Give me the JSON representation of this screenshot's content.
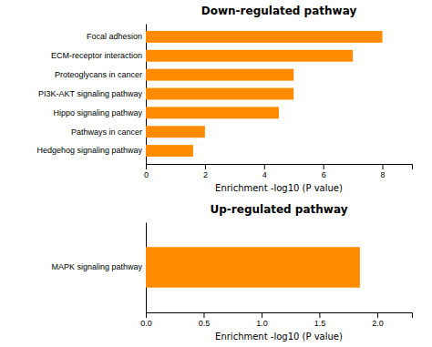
{
  "chart_data": [
    {
      "type": "bar",
      "orientation": "horizontal",
      "title": "Down-regulated pathway",
      "categories": [
        "Hedgehog signaling pathway",
        "Pathways in cancer",
        "Hippo signaling pathway",
        "PI3K-AKT signaling pathway",
        "Proteoglycans in cancer",
        "ECM-receptor interaction",
        "Focal adhesion"
      ],
      "values": [
        1.6,
        2.0,
        4.5,
        5.0,
        5.0,
        7.0,
        8.0
      ],
      "color": "#FF8C00",
      "xlabel": "Enrichment -log10 (P value)",
      "xlim": [
        0,
        9
      ],
      "xticks": [
        0,
        2,
        4,
        6,
        8
      ]
    },
    {
      "type": "bar",
      "orientation": "horizontal",
      "title": "Up-regulated pathway",
      "categories": [
        "MAPK signaling pathway"
      ],
      "values": [
        1.85
      ],
      "color": "#FF8C00",
      "xlabel": "Enrichment -log10 (P value)",
      "xlim": [
        0,
        2.3
      ],
      "xticks": [
        {
          "value": 0.0,
          "label": "0.0"
        },
        0.5,
        {
          "value": 1.0,
          "label": "1.0"
        },
        1.5,
        {
          "value": 2.0,
          "label": "2.0"
        }
      ]
    }
  ]
}
